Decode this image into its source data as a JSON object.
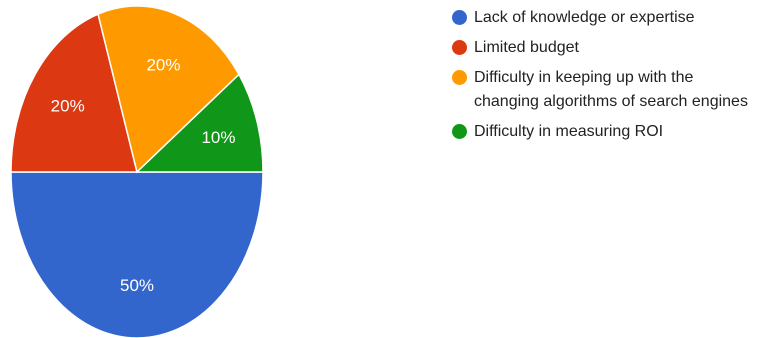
{
  "chart_data": {
    "type": "pie",
    "legend_position": "right",
    "slices": [
      {
        "label": "Lack of knowledge or expertise",
        "value": 50,
        "display": "50%",
        "color": "#3366cc"
      },
      {
        "label": "Limited budget",
        "value": 20,
        "display": "20%",
        "color": "#dc3912"
      },
      {
        "label": "Difficulty in keeping up with the changing algorithms of search engines",
        "value": 20,
        "display": "20%",
        "color": "#ff9900"
      },
      {
        "label": "Difficulty in measuring ROI",
        "value": 10,
        "display": "10%",
        "color": "#109618"
      }
    ]
  }
}
